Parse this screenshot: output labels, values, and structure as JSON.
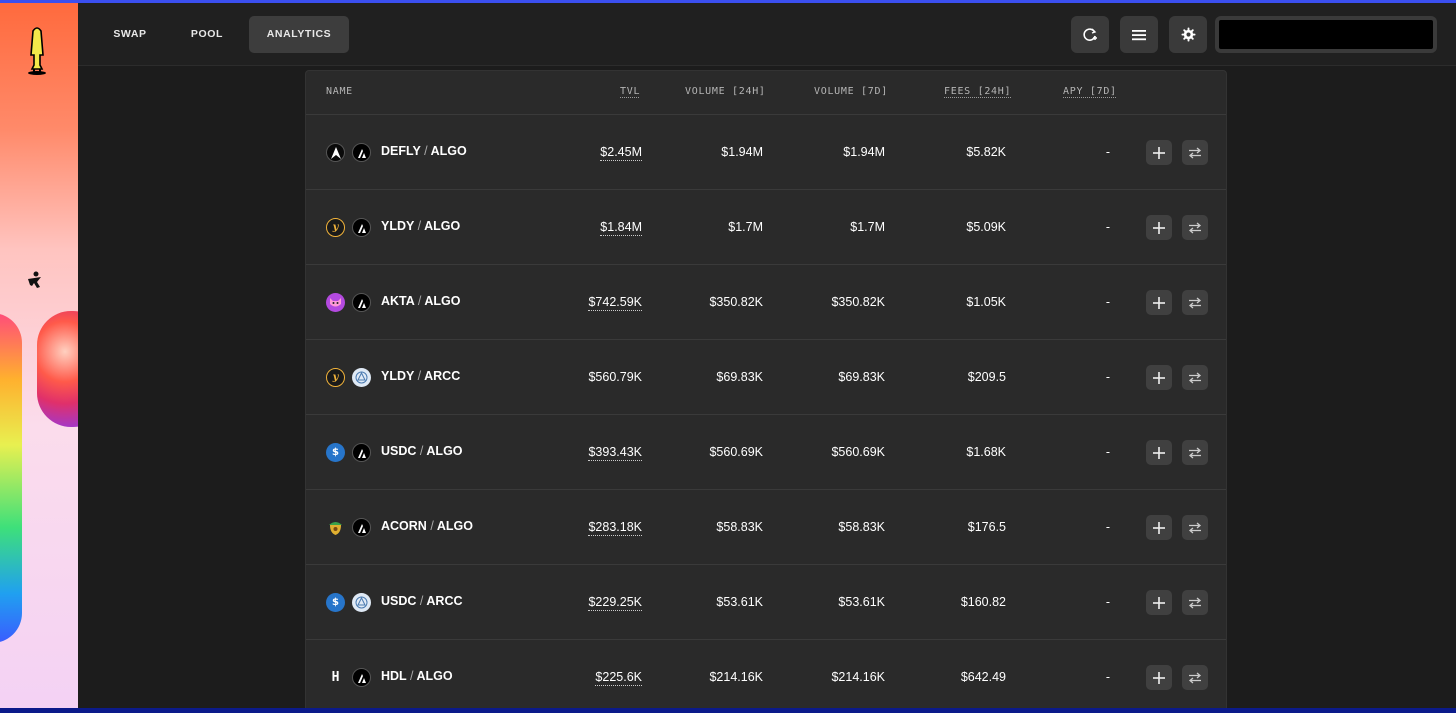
{
  "nav": {
    "tabs": [
      {
        "label": "SWAP"
      },
      {
        "label": "POOL"
      },
      {
        "label": "ANALYTICS"
      }
    ],
    "icons": [
      "refresh-plus-icon",
      "menu-icon",
      "settings-icon"
    ]
  },
  "table": {
    "headers": {
      "name": "NAME",
      "tvl": "TVL",
      "vol24": "VOLUME [24H]",
      "vol7": "VOLUME [7D]",
      "fees24": "FEES [24H]",
      "apy7": "APY [7D]"
    },
    "rows": [
      {
        "asset1": "DEFLY",
        "asset2": "ALGO",
        "tvl": "$2.45M",
        "vol24": "$1.94M",
        "vol7": "$1.94M",
        "fees24": "$5.82K",
        "apy": "-"
      },
      {
        "asset1": "YLDY",
        "asset2": "ALGO",
        "tvl": "$1.84M",
        "vol24": "$1.7M",
        "vol7": "$1.7M",
        "fees24": "$5.09K",
        "apy": "-"
      },
      {
        "asset1": "AKTA",
        "asset2": "ALGO",
        "tvl": "$742.59K",
        "vol24": "$350.82K",
        "vol7": "$350.82K",
        "fees24": "$1.05K",
        "apy": "-"
      },
      {
        "asset1": "YLDY",
        "asset2": "ARCC",
        "tvl": "$560.79K",
        "vol24": "$69.83K",
        "vol7": "$69.83K",
        "fees24": "$209.5",
        "apy": "-"
      },
      {
        "asset1": "USDC",
        "asset2": "ALGO",
        "tvl": "$393.43K",
        "vol24": "$560.69K",
        "vol7": "$560.69K",
        "fees24": "$1.68K",
        "apy": "-"
      },
      {
        "asset1": "ACORN",
        "asset2": "ALGO",
        "tvl": "$283.18K",
        "vol24": "$58.83K",
        "vol7": "$58.83K",
        "fees24": "$176.5",
        "apy": "-"
      },
      {
        "asset1": "USDC",
        "asset2": "ARCC",
        "tvl": "$229.25K",
        "vol24": "$53.61K",
        "vol7": "$53.61K",
        "fees24": "$160.82",
        "apy": "-"
      },
      {
        "asset1": "HDL",
        "asset2": "ALGO",
        "tvl": "$225.6K",
        "vol24": "$214.16K",
        "vol7": "$214.16K",
        "fees24": "$642.49",
        "apy": "-"
      }
    ],
    "separator": "/"
  },
  "tvl_underlined": [
    true,
    true,
    true,
    false,
    true,
    true,
    true,
    true
  ]
}
